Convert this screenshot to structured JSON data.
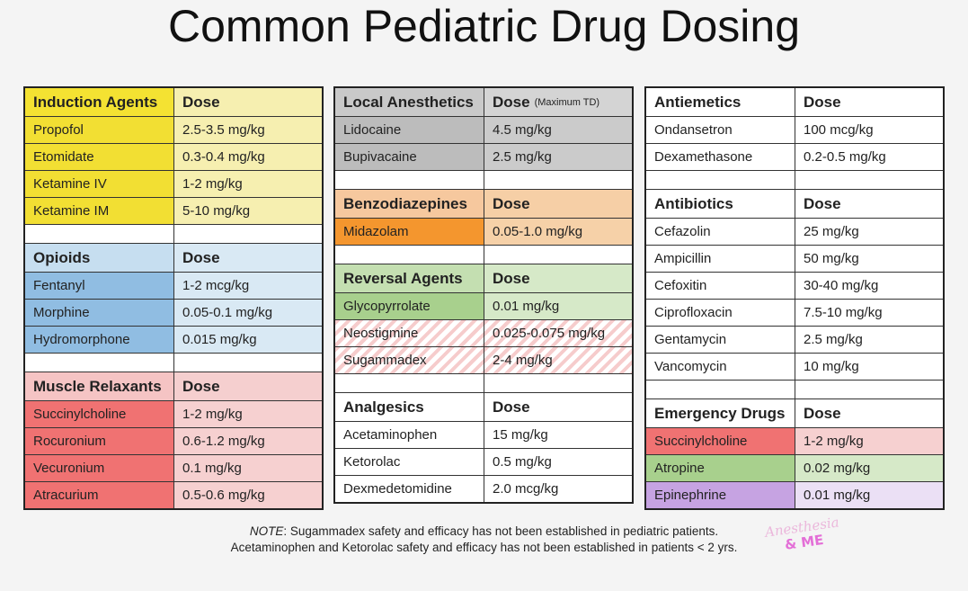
{
  "header": {
    "title": "Common Pediatric Drug Dosing"
  },
  "columns": [
    {
      "sections": [
        {
          "title": "Induction Agents",
          "dose_header": "Dose",
          "rows": [
            [
              "Propofol",
              "2.5-3.5 mg/kg"
            ],
            [
              "Etomidate",
              "0.3-0.4 mg/kg"
            ],
            [
              "Ketamine IV",
              "1-2 mg/kg"
            ],
            [
              "Ketamine IM",
              "5-10 mg/kg"
            ]
          ]
        },
        {
          "title": "Opioids",
          "dose_header": "Dose",
          "rows": [
            [
              "Fentanyl",
              "1-2 mcg/kg"
            ],
            [
              "Morphine",
              "0.05-0.1 mg/kg"
            ],
            [
              "Hydromorphone",
              "0.015 mg/kg"
            ]
          ]
        },
        {
          "title": "Muscle Relaxants",
          "dose_header": "Dose",
          "rows": [
            [
              "Succinylcholine",
              "1-2 mg/kg"
            ],
            [
              "Rocuronium",
              "0.6-1.2 mg/kg"
            ],
            [
              "Vecuronium",
              "0.1 mg/kg"
            ],
            [
              "Atracurium",
              "0.5-0.6 mg/kg"
            ]
          ]
        }
      ]
    },
    {
      "sections": [
        {
          "title": "Local Anesthetics",
          "dose_header": "Dose",
          "dose_note": "(Maximum TD)",
          "rows": [
            [
              "Lidocaine",
              "4.5 mg/kg"
            ],
            [
              "Bupivacaine",
              "2.5 mg/kg"
            ]
          ]
        },
        {
          "title": "Benzodiazepines",
          "dose_header": "Dose",
          "rows": [
            [
              "Midazolam",
              "0.05-1.0 mg/kg"
            ]
          ]
        },
        {
          "title": "Reversal Agents",
          "dose_header": "Dose",
          "rows": [
            [
              "Glycopyrrolate",
              "0.01 mg/kg"
            ],
            [
              "Neostigmine",
              "0.025-0.075 mg/kg"
            ],
            [
              "Sugammadex",
              "2-4 mg/kg"
            ]
          ]
        },
        {
          "title": "Analgesics",
          "dose_header": "Dose",
          "rows": [
            [
              "Acetaminophen",
              "15 mg/kg"
            ],
            [
              "Ketorolac",
              "0.5 mg/kg"
            ],
            [
              "Dexmedetomidine",
              "2.0 mcg/kg"
            ]
          ]
        }
      ]
    },
    {
      "sections": [
        {
          "title": "Antiemetics",
          "dose_header": "Dose",
          "rows": [
            [
              "Ondansetron",
              "100 mcg/kg"
            ],
            [
              "Dexamethasone",
              "0.2-0.5 mg/kg"
            ]
          ]
        },
        {
          "title": "Antibiotics",
          "dose_header": "Dose",
          "rows": [
            [
              "Cefazolin",
              "25 mg/kg"
            ],
            [
              "Ampicillin",
              "50 mg/kg"
            ],
            [
              "Cefoxitin",
              "30-40 mg/kg"
            ],
            [
              "Ciprofloxacin",
              "7.5-10 mg/kg"
            ],
            [
              "Gentamycin",
              "2.5 mg/kg"
            ],
            [
              "Vancomycin",
              "10 mg/kg"
            ]
          ]
        },
        {
          "title": "Emergency Drugs",
          "dose_header": "Dose",
          "rows": [
            [
              "Succinylcholine",
              "1-2 mg/kg"
            ],
            [
              "Atropine",
              "0.02 mg/kg"
            ],
            [
              "Epinephrine",
              "0.01 mg/kg"
            ]
          ]
        }
      ]
    }
  ],
  "note": {
    "label": "NOTE",
    "line1": ": Sugammadex safety and efficacy has not been established in pediatric patients.",
    "line2": "Acetaminophen and Ketorolac safety and efficacy has not been established in patients < 2 yrs."
  },
  "logo": {
    "line1": "Anesthesia",
    "line2": "& ME"
  }
}
